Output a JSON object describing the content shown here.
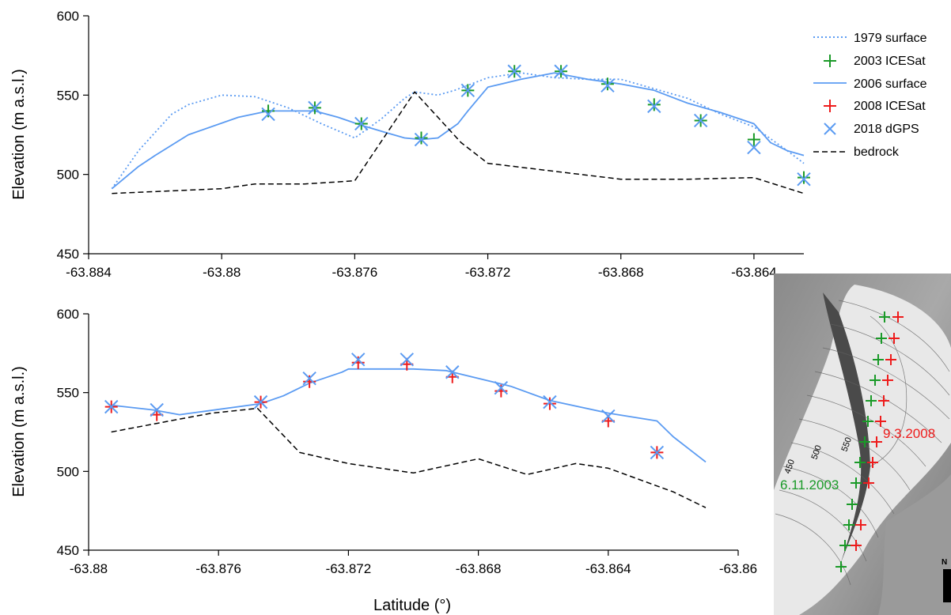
{
  "colors": {
    "surface_1979": "#5b9bf2",
    "icesat_2003": "#1a9a28",
    "surface_2006": "#5b9bf2",
    "icesat_2008": "#ee1c1c",
    "dgps_2018": "#5b9bf2",
    "bedrock": "#000000"
  },
  "chart_data": [
    {
      "type": "line",
      "panel": "top",
      "xlabel": "",
      "ylabel": "Elevation (m a.s.l.)",
      "xlim": [
        -63.884,
        -63.8625
      ],
      "ylim": [
        450,
        600
      ],
      "xticks": [
        -63.884,
        -63.88,
        -63.876,
        -63.872,
        -63.868,
        -63.864
      ],
      "yticks": [
        450,
        500,
        550,
        600
      ],
      "xtick_labels": [
        "-63.884",
        "-63.88",
        "-63.876",
        "-63.872",
        "-63.868",
        "-63.864"
      ],
      "ytick_labels": [
        "450",
        "500",
        "550",
        "600"
      ],
      "legend": {
        "position": "top-right",
        "entries": [
          "1979 surface",
          "2003 ICESat",
          "2006 surface",
          "2008 ICESat",
          "2018 dGPS",
          "bedrock"
        ]
      },
      "series": [
        {
          "name": "1979 surface",
          "style": "dotted",
          "x": [
            -63.8833,
            -63.8825,
            -63.8815,
            -63.881,
            -63.88,
            -63.879,
            -63.878,
            -63.877,
            -63.876,
            -63.8752,
            -63.8745,
            -63.8742,
            -63.8735,
            -63.873,
            -63.872,
            -63.871,
            -63.87,
            -63.869,
            -63.868,
            -63.867,
            -63.866,
            -63.865,
            -63.864,
            -63.863,
            -63.8625
          ],
          "y": [
            491,
            515,
            538,
            544,
            550,
            549,
            542,
            532,
            523,
            535,
            548,
            552,
            550,
            553,
            561,
            564,
            561,
            560,
            560,
            554,
            548,
            538,
            530,
            515,
            507
          ]
        },
        {
          "name": "2003 ICESat",
          "marker": "plus",
          "x": [
            -63.8786,
            -63.8772,
            -63.8758,
            -63.874,
            -63.8726,
            -63.8712,
            -63.8698,
            -63.8684,
            -63.867,
            -63.8656,
            -63.864,
            -63.8625
          ],
          "y": [
            540,
            542,
            532,
            523,
            553,
            565,
            565,
            557,
            544,
            534,
            522,
            498
          ]
        },
        {
          "name": "2006 surface",
          "style": "solid",
          "x": [
            -63.8833,
            -63.8825,
            -63.882,
            -63.881,
            -63.8795,
            -63.8786,
            -63.8772,
            -63.8765,
            -63.8758,
            -63.875,
            -63.8745,
            -63.874,
            -63.8735,
            -63.8729,
            -63.8726,
            -63.872,
            -63.871,
            -63.87,
            -63.869,
            -63.868,
            -63.867,
            -63.866,
            -63.865,
            -63.864,
            -63.8635,
            -63.863,
            -63.8625
          ],
          "y": [
            491,
            505,
            512,
            525,
            536,
            540,
            540,
            536,
            531,
            526,
            523,
            522,
            523,
            532,
            540,
            555,
            560,
            564,
            560,
            557,
            553,
            545,
            539,
            532,
            520,
            515,
            512
          ]
        },
        {
          "name": "2008 ICESat",
          "marker": "plus",
          "x": [],
          "y": []
        },
        {
          "name": "2018 dGPS",
          "marker": "x",
          "x": [
            -63.8786,
            -63.8772,
            -63.8758,
            -63.874,
            -63.8726,
            -63.8712,
            -63.8698,
            -63.8684,
            -63.867,
            -63.8656,
            -63.864,
            -63.8625
          ],
          "y": [
            538,
            542,
            532,
            522,
            553,
            565,
            565,
            556,
            543,
            534,
            517,
            497
          ]
        },
        {
          "name": "bedrock",
          "style": "dashed",
          "x": [
            -63.8833,
            -63.88,
            -63.879,
            -63.8775,
            -63.876,
            -63.8742,
            -63.8728,
            -63.872,
            -63.87,
            -63.868,
            -63.866,
            -63.864,
            -63.8625
          ],
          "y": [
            488,
            491,
            494,
            494,
            496,
            552,
            520,
            507,
            502,
            497,
            497,
            498,
            488
          ]
        }
      ]
    },
    {
      "type": "line",
      "panel": "bottom",
      "xlabel": "Latitude (°)",
      "ylabel": "Elevation (m a.s.l.)",
      "xlim": [
        -63.88,
        -63.86
      ],
      "ylim": [
        450,
        600
      ],
      "xticks": [
        -63.88,
        -63.876,
        -63.872,
        -63.868,
        -63.864,
        -63.86
      ],
      "yticks": [
        450,
        500,
        550,
        600
      ],
      "xtick_labels": [
        "-63.88",
        "-63.876",
        "-63.872",
        "-63.868",
        "-63.864",
        "-63.86"
      ],
      "ytick_labels": [
        "450",
        "500",
        "550",
        "600"
      ],
      "series": [
        {
          "name": "2008 ICESat",
          "marker": "plus",
          "x": [
            -63.8793,
            -63.8779,
            -63.8747,
            -63.8732,
            -63.8717,
            -63.8702,
            -63.8688,
            -63.8673,
            -63.8658,
            -63.864,
            -63.8625
          ],
          "y": [
            541,
            536,
            544,
            557,
            569,
            568,
            560,
            551,
            543,
            532,
            512
          ]
        },
        {
          "name": "2006 surface",
          "style": "solid",
          "x": [
            -63.8793,
            -63.878,
            -63.8772,
            -63.8747,
            -63.874,
            -63.8732,
            -63.8722,
            -63.872,
            -63.87,
            -63.869,
            -63.8688,
            -63.867,
            -63.8658,
            -63.864,
            -63.8625,
            -63.862,
            -63.8615,
            -63.861
          ],
          "y": [
            542,
            539,
            536,
            543,
            548,
            556,
            563,
            565,
            565,
            564,
            563,
            554,
            545,
            537,
            532,
            522,
            514,
            506
          ]
        },
        {
          "name": "2018 dGPS",
          "marker": "x",
          "x": [
            -63.8793,
            -63.8779,
            -63.8747,
            -63.8732,
            -63.8717,
            -63.8702,
            -63.8688,
            -63.8673,
            -63.8658,
            -63.864,
            -63.8625
          ],
          "y": [
            541,
            539,
            544,
            559,
            571,
            571,
            563,
            553,
            544,
            535,
            512
          ]
        },
        {
          "name": "bedrock",
          "style": "dashed",
          "x": [
            -63.8793,
            -63.8775,
            -63.8762,
            -63.8748,
            -63.8735,
            -63.872,
            -63.87,
            -63.868,
            -63.8665,
            -63.865,
            -63.864,
            -63.862,
            -63.861
          ],
          "y": [
            525,
            532,
            537,
            540,
            512,
            505,
            499,
            508,
            498,
            505,
            502,
            487,
            477
          ]
        }
      ]
    }
  ],
  "map": {
    "labels": {
      "date_2003": "6.11.2003",
      "date_2008": "9.3.2008",
      "contour_450": "450",
      "contour_500": "500",
      "contour_550": "550",
      "north": "N"
    }
  }
}
